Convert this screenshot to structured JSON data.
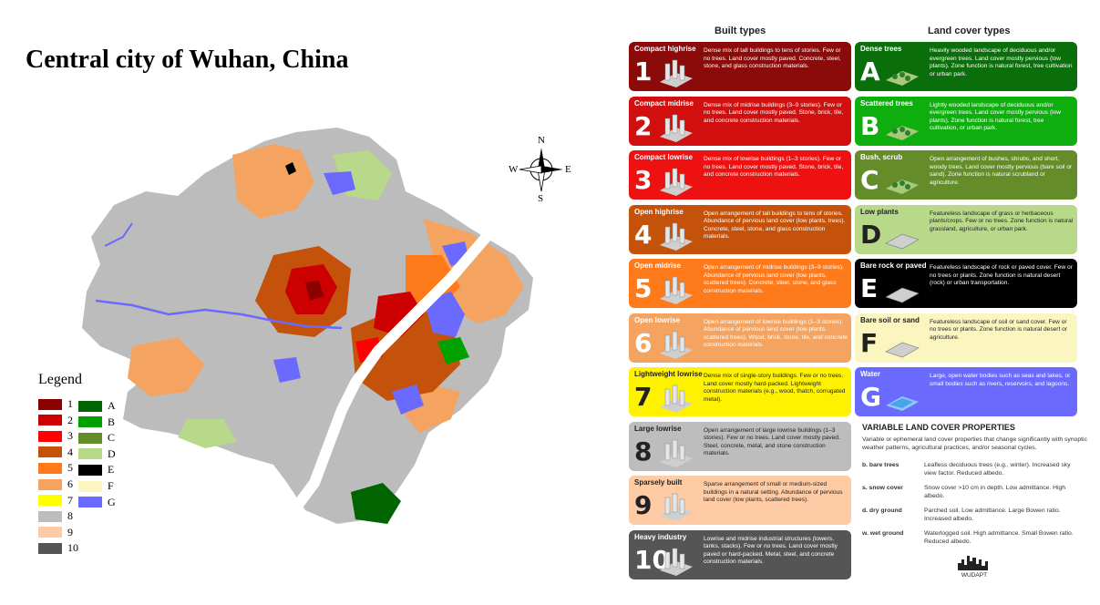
{
  "title": "Central city of Wuhan, China",
  "compass": {
    "n": "N",
    "s": "S",
    "e": "E",
    "w": "W"
  },
  "legend": {
    "title": "Legend",
    "items": [
      {
        "label": "1",
        "color": "#8b0000"
      },
      {
        "label": "2",
        "color": "#cc0000"
      },
      {
        "label": "3",
        "color": "#ff0000"
      },
      {
        "label": "4",
        "color": "#c4520a"
      },
      {
        "label": "5",
        "color": "#ff7a1a"
      },
      {
        "label": "6",
        "color": "#f4a460"
      },
      {
        "label": "7",
        "color": "#ffff00"
      },
      {
        "label": "8",
        "color": "#bcbcbc"
      },
      {
        "label": "9",
        "color": "#ffcba4"
      },
      {
        "label": "10",
        "color": "#555555"
      },
      {
        "label": "A",
        "color": "#006400"
      },
      {
        "label": "B",
        "color": "#00a000"
      },
      {
        "label": "C",
        "color": "#648c28"
      },
      {
        "label": "D",
        "color": "#b8d98a"
      },
      {
        "label": "E",
        "color": "#000000"
      },
      {
        "label": "F",
        "color": "#fbf5c0"
      },
      {
        "label": "G",
        "color": "#6a6aff"
      }
    ]
  },
  "panel": {
    "built_header": "Built types",
    "land_header": "Land cover types",
    "built": [
      {
        "num": "1",
        "name": "Compact highrise",
        "color": "#8b0a0a",
        "desc": "Dense mix of tall buildings to tens of stories. Few or no trees. Land cover mostly paved. Concrete, steel, stone, and glass construction materials."
      },
      {
        "num": "2",
        "name": "Compact midrise",
        "color": "#d10f0f",
        "desc": "Dense mix of midrise buildings (3–9 stories). Few or no trees. Land cover mostly paved. Stone, brick, tile, and concrete construction materials."
      },
      {
        "num": "3",
        "name": "Compact lowrise",
        "color": "#ee1111",
        "desc": "Dense mix of lowrise buildings (1–3 stories). Few or no trees. Land cover mostly paved. Stone, brick, tile, and concrete construction materials."
      },
      {
        "num": "4",
        "name": "Open highrise",
        "color": "#c4520a",
        "desc": "Open arrangement of tall buildings to tens of stories. Abundance of pervious land cover (low plants, trees). Concrete, steel, stone, and glass construction materials."
      },
      {
        "num": "5",
        "name": "Open midrise",
        "color": "#ff7a1a",
        "desc": "Open arrangement of midrise buildings (3–9 stories). Abundance of pervious land cover (low plants, scattered trees). Concrete, steel, stone, and glass construction materials."
      },
      {
        "num": "6",
        "name": "Open lowrise",
        "color": "#f4a460",
        "desc": "Open arrangement of lowrise buildings (1–3 stories). Abundance of pervious land cover (low plants, scattered trees). Wood, brick, stone, tile, and concrete construction materials."
      },
      {
        "num": "7",
        "name": "Lightweight lowrise",
        "color": "#fff200",
        "light": true,
        "desc": "Dense mix of single-story buildings. Few or no trees. Land cover mostly hard-packed. Lightweight construction materials (e.g., wood, thatch, corrugated metal)."
      },
      {
        "num": "8",
        "name": "Large lowrise",
        "color": "#bdbdbd",
        "light": true,
        "desc": "Open arrangement of large lowrise buildings (1–3 stories). Few or no trees. Land cover mostly paved. Steel, concrete, metal, and stone construction materials."
      },
      {
        "num": "9",
        "name": "Sparsely built",
        "color": "#ffcba4",
        "light": true,
        "desc": "Sparse arrangement of small or medium-sized buildings in a natural setting. Abundance of pervious land cover (low plants, scattered trees)."
      },
      {
        "num": "10",
        "name": "Heavy industry",
        "color": "#555555",
        "desc": "Lowrise and midrise industrial structures (towers, tanks, stacks). Few or no trees. Land cover mostly paved or hard-packed. Metal, steel, and concrete construction materials."
      }
    ],
    "land": [
      {
        "num": "A",
        "name": "Dense trees",
        "color": "#0a6e0a",
        "desc": "Heavily wooded landscape of deciduous and/or evergreen trees. Land cover mostly pervious (low plants). Zone function is natural forest, tree cultivation or urban park."
      },
      {
        "num": "B",
        "name": "Scattered trees",
        "color": "#0fae0f",
        "desc": "Lightly wooded landscape of deciduous and/or evergreen trees. Land cover mostly pervious (low plants). Zone function is natural forest, tree cultivation, or urban park."
      },
      {
        "num": "C",
        "name": "Bush, scrub",
        "color": "#648c28",
        "desc": "Open arrangement of bushes, shrubs, and short, woody trees. Land cover mostly pervious (bare soil or sand). Zone function is natural scrubland or agriculture."
      },
      {
        "num": "D",
        "name": "Low plants",
        "color": "#b8d98a",
        "light": true,
        "desc": "Featureless landscape of grass or herbaceous plants/crops. Few or no trees. Zone function is natural grassland, agriculture, or urban park."
      },
      {
        "num": "E",
        "name": "Bare rock or paved",
        "color": "#000000",
        "desc": "Featureless landscape of rock or paved cover. Few or no trees or plants. Zone function is natural desert (rock) or urban transportation."
      },
      {
        "num": "F",
        "name": "Bare soil or sand",
        "color": "#fbf5c0",
        "light": true,
        "desc": "Featureless landscape of soil or sand cover. Few or no trees or plants. Zone function is natural desert or agriculture."
      },
      {
        "num": "G",
        "name": "Water",
        "color": "#6a6aff",
        "desc": "Large, open water bodies such as seas and lakes, or small bodies such as rivers, reservoirs, and lagoons."
      }
    ],
    "variable": {
      "title": "VARIABLE LAND COVER PROPERTIES",
      "subtitle": "Variable or ephemeral land cover properties that change significantly with synoptic weather patterns, agricultural practices, and/or seasonal cycles.",
      "rows": [
        {
          "key": "b. bare trees",
          "val": "Leafless deciduous trees (e.g., winter). Increased sky view factor. Reduced albedo."
        },
        {
          "key": "s. snow cover",
          "val": "Snow cover >10 cm in depth. Low admittance. High albedo."
        },
        {
          "key": "d. dry ground",
          "val": "Parched soil. Low admittance. Large Bowen ratio. Increased albedo."
        },
        {
          "key": "w. wet ground",
          "val": "Waterlogged soil. High admittance. Small Bowen ratio. Reduced albedo."
        }
      ]
    },
    "logo": "WUDAPT"
  }
}
